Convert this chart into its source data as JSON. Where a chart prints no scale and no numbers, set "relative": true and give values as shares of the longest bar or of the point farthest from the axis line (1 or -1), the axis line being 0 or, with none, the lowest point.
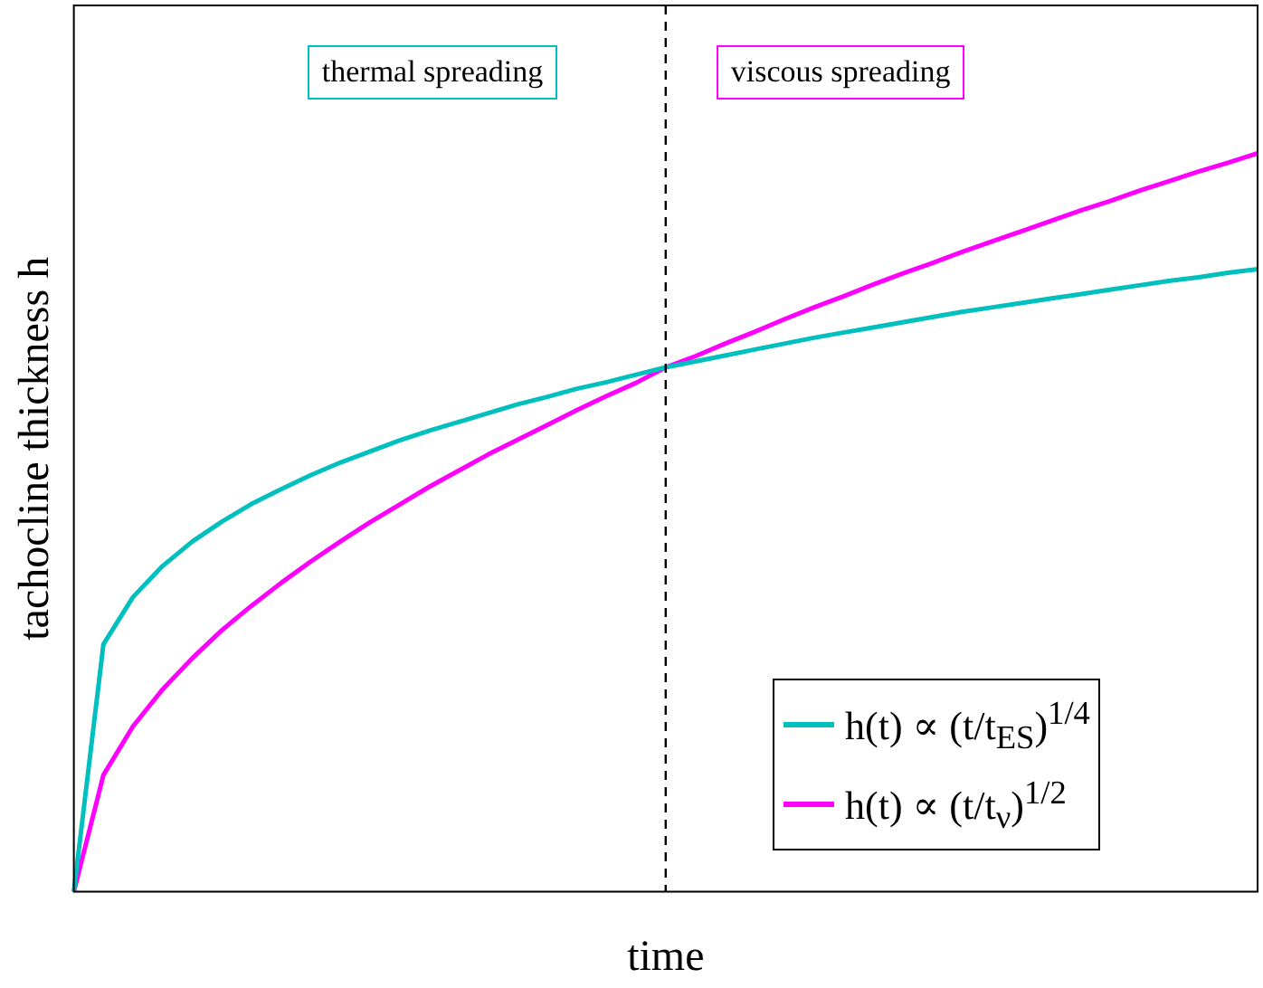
{
  "chart_data": {
    "type": "line",
    "relative": true,
    "xlabel": "time",
    "ylabel": "tachocline thickness h",
    "categories": [
      null,
      null,
      null,
      null,
      null,
      null,
      null,
      null,
      null,
      null,
      null,
      null,
      null,
      null,
      null,
      null,
      null,
      null,
      null,
      null,
      null,
      null,
      null,
      null,
      null,
      null,
      null,
      null,
      null,
      null,
      null,
      null,
      null,
      null,
      null,
      null,
      null,
      null,
      null,
      null,
      null
    ],
    "legend": "bottom right",
    "grid": false,
    "marker": "none",
    "line_style": "solid",
    "series": [
      {
        "name": "h(t) ∝ (t/t$_{ES}$)$^{1/4}$",
        "color": "#00bfbf",
        "values": [
          0,
          0.335,
          0.399,
          0.441,
          0.474,
          0.501,
          0.525,
          0.545,
          0.564,
          0.581,
          0.596,
          0.611,
          0.624,
          0.636,
          0.648,
          0.66,
          0.67,
          0.681,
          0.69,
          0.7,
          0.71,
          0.718,
          0.726,
          0.734,
          0.742,
          0.75,
          0.757,
          0.764,
          0.771,
          0.778,
          0.785,
          0.791,
          0.797,
          0.803,
          0.809,
          0.815,
          0.821,
          0.827,
          0.832,
          0.838,
          0.843
        ]
      },
      {
        "name": "h(t) ∝ (t/t$_{ν}$)$^{1/2}$",
        "color": "#ff00ff",
        "values": [
          0,
          0.158,
          0.224,
          0.274,
          0.316,
          0.354,
          0.387,
          0.418,
          0.447,
          0.474,
          0.5,
          0.524,
          0.548,
          0.57,
          0.592,
          0.612,
          0.632,
          0.652,
          0.671,
          0.689,
          0.71,
          0.725,
          0.742,
          0.758,
          0.775,
          0.791,
          0.806,
          0.822,
          0.837,
          0.851,
          0.866,
          0.88,
          0.894,
          0.908,
          0.922,
          0.935,
          0.949,
          0.962,
          0.975,
          0.987,
          1
        ]
      }
    ],
    "ref_lines": [
      {
        "axis": "x",
        "color": "#000000",
        "line_style": "dashed"
      }
    ],
    "annotations": [
      "thermal spreading",
      "viscous spreading"
    ]
  }
}
